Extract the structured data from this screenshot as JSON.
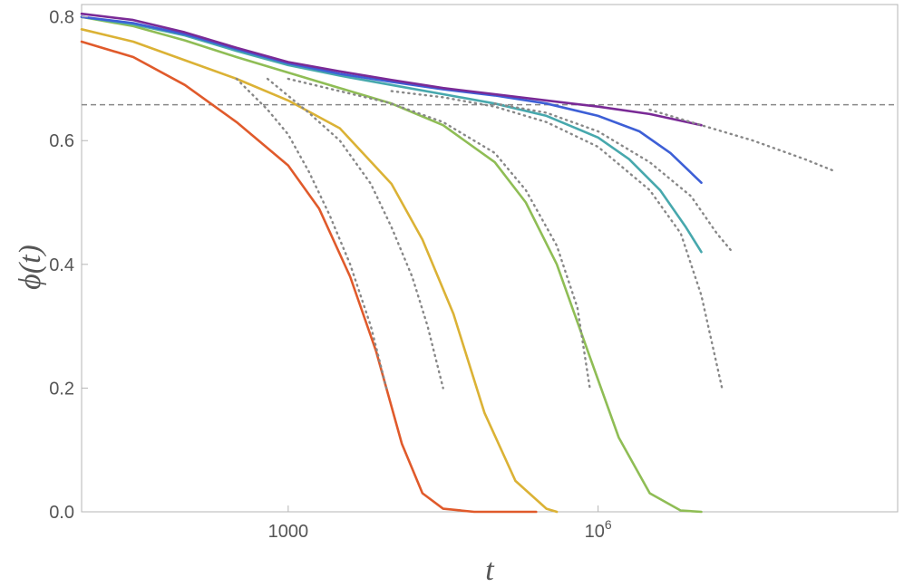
{
  "chart_data": {
    "type": "line",
    "title": "",
    "xlabel": "t",
    "ylabel": "ϕ(t)",
    "xscale": "log10",
    "xlim_log10": [
      1,
      8.9
    ],
    "ylim": [
      0,
      0.82
    ],
    "x_ticks": [
      {
        "log10": 3,
        "label": "1000"
      },
      {
        "log10": 6,
        "label": "10",
        "sup": "6"
      }
    ],
    "y_ticks": [
      {
        "value": 0.0,
        "label": "0.0"
      },
      {
        "value": 0.2,
        "label": "0.2"
      },
      {
        "value": 0.4,
        "label": "0.4"
      },
      {
        "value": 0.6,
        "label": "0.6"
      },
      {
        "value": 0.8,
        "label": "0.8"
      }
    ],
    "reference_line": {
      "y": 0.658,
      "style": "dashed",
      "color": "#888888"
    },
    "series": [
      {
        "name": "curve-1",
        "color": "#e05a2b",
        "style": "solid",
        "points": [
          [
            1.0,
            0.76
          ],
          [
            1.5,
            0.735
          ],
          [
            2.0,
            0.69
          ],
          [
            2.5,
            0.63
          ],
          [
            3.0,
            0.56
          ],
          [
            3.3,
            0.49
          ],
          [
            3.6,
            0.38
          ],
          [
            3.85,
            0.26
          ],
          [
            4.1,
            0.11
          ],
          [
            4.3,
            0.03
          ],
          [
            4.5,
            0.005
          ],
          [
            4.8,
            0.0
          ],
          [
            5.4,
            0.0
          ]
        ]
      },
      {
        "name": "curve-2",
        "color": "#dbb235",
        "style": "solid",
        "points": [
          [
            1.0,
            0.78
          ],
          [
            1.5,
            0.76
          ],
          [
            2.0,
            0.73
          ],
          [
            2.5,
            0.7
          ],
          [
            3.0,
            0.665
          ],
          [
            3.5,
            0.62
          ],
          [
            4.0,
            0.53
          ],
          [
            4.3,
            0.44
          ],
          [
            4.6,
            0.32
          ],
          [
            4.9,
            0.16
          ],
          [
            5.2,
            0.05
          ],
          [
            5.5,
            0.005
          ],
          [
            5.6,
            0.0
          ]
        ]
      },
      {
        "name": "curve-3",
        "color": "#8fbd55",
        "style": "solid",
        "points": [
          [
            1.0,
            0.8
          ],
          [
            1.5,
            0.785
          ],
          [
            2.0,
            0.762
          ],
          [
            2.5,
            0.735
          ],
          [
            3.0,
            0.71
          ],
          [
            3.5,
            0.685
          ],
          [
            4.0,
            0.66
          ],
          [
            4.5,
            0.625
          ],
          [
            5.0,
            0.565
          ],
          [
            5.3,
            0.5
          ],
          [
            5.6,
            0.4
          ],
          [
            5.9,
            0.26
          ],
          [
            6.2,
            0.12
          ],
          [
            6.5,
            0.03
          ],
          [
            6.8,
            0.002
          ],
          [
            7.0,
            0.0
          ]
        ]
      },
      {
        "name": "curve-4",
        "color": "#47a8ad",
        "style": "solid",
        "points": [
          [
            1.0,
            0.8
          ],
          [
            1.5,
            0.788
          ],
          [
            2.0,
            0.77
          ],
          [
            2.5,
            0.745
          ],
          [
            3.0,
            0.722
          ],
          [
            3.5,
            0.705
          ],
          [
            4.0,
            0.69
          ],
          [
            4.5,
            0.675
          ],
          [
            5.0,
            0.66
          ],
          [
            5.5,
            0.64
          ],
          [
            6.0,
            0.605
          ],
          [
            6.3,
            0.57
          ],
          [
            6.6,
            0.52
          ],
          [
            6.85,
            0.46
          ],
          [
            7.0,
            0.42
          ]
        ]
      },
      {
        "name": "curve-5",
        "color": "#3d5fd6",
        "style": "solid",
        "points": [
          [
            1.0,
            0.8
          ],
          [
            1.5,
            0.79
          ],
          [
            2.0,
            0.772
          ],
          [
            2.5,
            0.748
          ],
          [
            3.0,
            0.725
          ],
          [
            3.5,
            0.708
          ],
          [
            4.0,
            0.695
          ],
          [
            4.5,
            0.683
          ],
          [
            5.0,
            0.673
          ],
          [
            5.5,
            0.66
          ],
          [
            6.0,
            0.64
          ],
          [
            6.4,
            0.615
          ],
          [
            6.7,
            0.58
          ],
          [
            7.0,
            0.532
          ]
        ]
      },
      {
        "name": "curve-6",
        "color": "#7a2a96",
        "style": "solid",
        "points": [
          [
            1.0,
            0.805
          ],
          [
            1.5,
            0.795
          ],
          [
            2.0,
            0.775
          ],
          [
            2.5,
            0.75
          ],
          [
            3.0,
            0.727
          ],
          [
            3.5,
            0.712
          ],
          [
            4.0,
            0.698
          ],
          [
            4.5,
            0.685
          ],
          [
            5.0,
            0.675
          ],
          [
            5.5,
            0.665
          ],
          [
            6.0,
            0.655
          ],
          [
            6.5,
            0.643
          ],
          [
            7.0,
            0.625
          ]
        ]
      },
      {
        "name": "asymptote-1",
        "color": "#888888",
        "style": "dotted",
        "points": [
          [
            2.5,
            0.7
          ],
          [
            2.8,
            0.65
          ],
          [
            3.0,
            0.61
          ],
          [
            3.2,
            0.55
          ],
          [
            3.4,
            0.48
          ],
          [
            3.6,
            0.4
          ],
          [
            3.8,
            0.3
          ],
          [
            3.95,
            0.2
          ]
        ]
      },
      {
        "name": "asymptote-2",
        "color": "#888888",
        "style": "dotted",
        "points": [
          [
            2.8,
            0.7
          ],
          [
            3.2,
            0.645
          ],
          [
            3.5,
            0.6
          ],
          [
            3.8,
            0.53
          ],
          [
            4.0,
            0.46
          ],
          [
            4.2,
            0.38
          ],
          [
            4.35,
            0.3
          ],
          [
            4.5,
            0.2
          ]
        ]
      },
      {
        "name": "asymptote-3",
        "color": "#888888",
        "style": "dotted",
        "points": [
          [
            3.0,
            0.7
          ],
          [
            3.5,
            0.68
          ],
          [
            4.0,
            0.66
          ],
          [
            4.5,
            0.63
          ],
          [
            5.0,
            0.58
          ],
          [
            5.3,
            0.52
          ],
          [
            5.6,
            0.43
          ],
          [
            5.8,
            0.33
          ],
          [
            5.92,
            0.2
          ]
        ]
      },
      {
        "name": "asymptote-4",
        "color": "#888888",
        "style": "dotted",
        "points": [
          [
            4.0,
            0.68
          ],
          [
            4.5,
            0.67
          ],
          [
            5.0,
            0.655
          ],
          [
            5.5,
            0.63
          ],
          [
            6.0,
            0.59
          ],
          [
            6.5,
            0.52
          ],
          [
            6.8,
            0.45
          ],
          [
            7.0,
            0.35
          ],
          [
            7.2,
            0.2
          ]
        ]
      },
      {
        "name": "asymptote-5",
        "color": "#888888",
        "style": "dotted",
        "points": [
          [
            5.0,
            0.66
          ],
          [
            5.5,
            0.645
          ],
          [
            6.0,
            0.615
          ],
          [
            6.5,
            0.565
          ],
          [
            6.9,
            0.51
          ],
          [
            7.15,
            0.45
          ],
          [
            7.3,
            0.42
          ]
        ]
      },
      {
        "name": "asymptote-6",
        "color": "#888888",
        "style": "dotted",
        "points": [
          [
            6.5,
            0.65
          ],
          [
            7.0,
            0.625
          ],
          [
            7.5,
            0.6
          ],
          [
            8.0,
            0.57
          ],
          [
            8.3,
            0.55
          ]
        ]
      }
    ]
  }
}
